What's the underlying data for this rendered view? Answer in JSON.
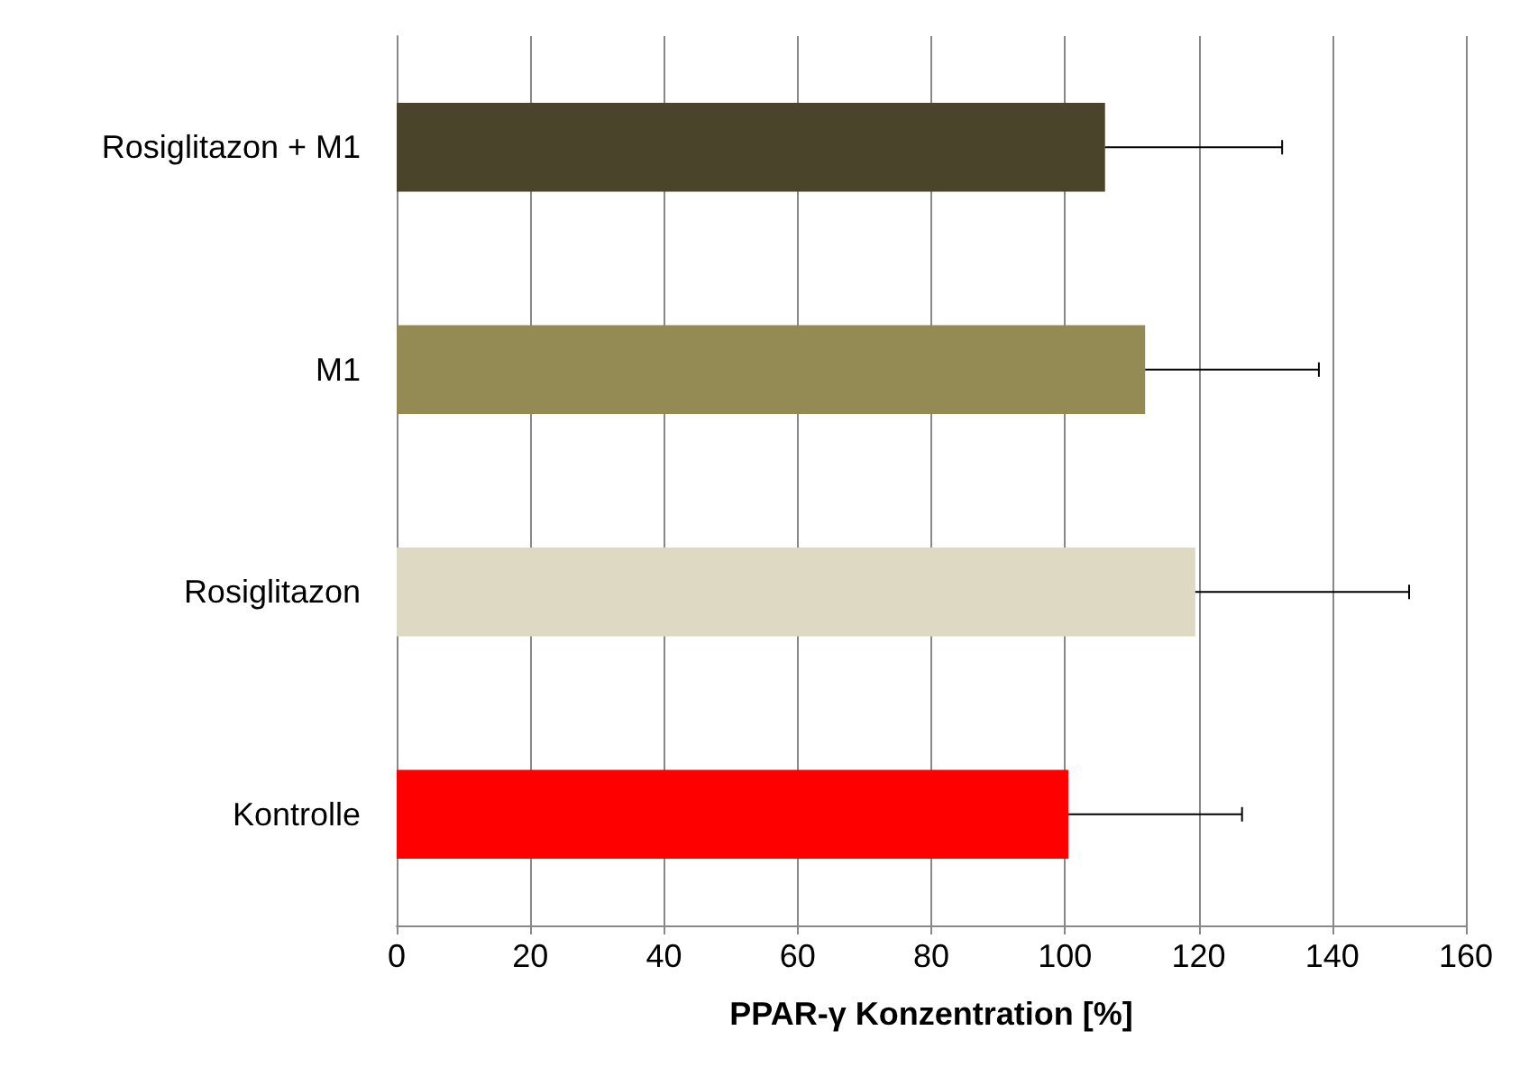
{
  "chart_data": {
    "type": "bar",
    "orientation": "horizontal",
    "xlabel": "PPAR-γ Konzentration [%]",
    "categories": [
      "Rosiglitazon + M1",
      "M1",
      "Rosiglitazon",
      "Kontrolle"
    ],
    "values": [
      106,
      112,
      119.5,
      100.5
    ],
    "colors": [
      "#4a452a",
      "#948a54",
      "#ddd9c3",
      "#ff0000"
    ],
    "errors": [
      [
        106,
        132.5
      ],
      [
        112,
        138
      ],
      [
        119.5,
        151.5
      ],
      [
        100.5,
        126.5
      ]
    ],
    "xlim": [
      0,
      160
    ],
    "xticks": [
      0,
      20,
      40,
      60,
      80,
      100,
      120,
      140,
      160
    ],
    "grid": "x"
  }
}
